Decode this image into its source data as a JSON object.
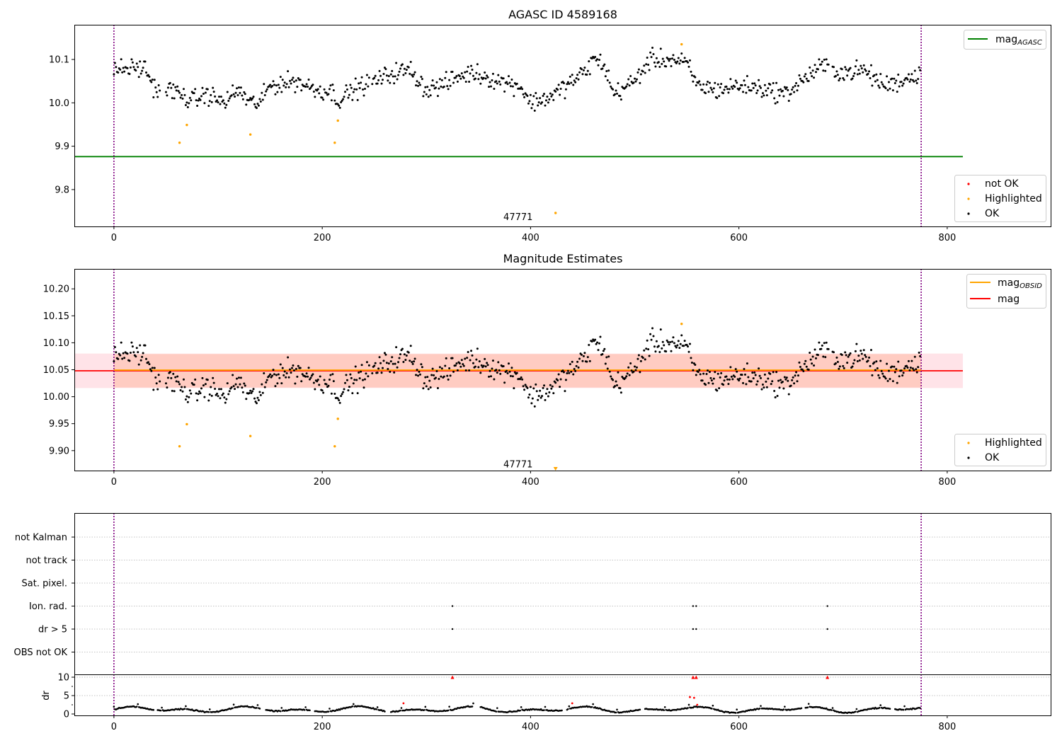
{
  "chart_data": [
    {
      "type": "scatter",
      "title": "AGASC ID 4589168",
      "xlabel": "",
      "ylabel": "",
      "xlim": [
        -38,
        900
      ],
      "ylim": [
        9.715,
        10.18
      ],
      "xticks": [
        0,
        200,
        400,
        600,
        800
      ],
      "yticks": [
        9.8,
        9.9,
        10.0,
        10.1
      ],
      "ytick_labels": [
        "9.8",
        "9.9",
        "10.0",
        "10.1"
      ],
      "vlines": [
        0,
        775
      ],
      "hline": {
        "name": "mag_AGASC",
        "y": 9.876,
        "x_range": [
          -38,
          815
        ],
        "color": "#008000"
      },
      "observation_label": {
        "text": "47771",
        "x": 388,
        "y": 9.73
      },
      "highlighted": [
        {
          "x": 63,
          "y": 9.908
        },
        {
          "x": 70,
          "y": 9.949
        },
        {
          "x": 131,
          "y": 9.927
        },
        {
          "x": 212,
          "y": 9.908
        },
        {
          "x": 215,
          "y": 9.959
        },
        {
          "x": 424,
          "y": 9.746
        },
        {
          "x": 545,
          "y": 10.135
        }
      ],
      "ok_series": {
        "name": "OK",
        "n_points": 775,
        "mean": 10.046
      },
      "legend": {
        "upper": [
          {
            "label": "mag",
            "subscript": "AGASC",
            "color": "#008000",
            "kind": "line"
          }
        ],
        "lower": [
          {
            "label": "not OK",
            "color": "#ff0000",
            "kind": "dot"
          },
          {
            "label": "Highlighted",
            "color": "#ffa500",
            "kind": "dot"
          },
          {
            "label": "OK",
            "color": "#000000",
            "kind": "dot"
          }
        ],
        "placement": [
          "top-right",
          "bottom-right"
        ]
      }
    },
    {
      "type": "scatter",
      "title": "Magnitude Estimates",
      "xlabel": "",
      "ylabel": "",
      "xlim": [
        -38,
        900
      ],
      "ylim": [
        9.863,
        10.237
      ],
      "xticks": [
        0,
        200,
        400,
        600,
        800
      ],
      "yticks": [
        9.9,
        9.95,
        10.0,
        10.05,
        10.1,
        10.15,
        10.2
      ],
      "ytick_labels": [
        "9.90",
        "9.95",
        "10.00",
        "10.05",
        "10.10",
        "10.15",
        "10.20"
      ],
      "vlines": [
        0,
        775
      ],
      "mag_line": {
        "name": "mag",
        "y": 10.048,
        "color": "#ff0000",
        "band": [
          10.016,
          10.08
        ]
      },
      "mag_obsid_line": {
        "name": "mag_OBSID",
        "y": 10.048,
        "x_range": [
          0,
          775
        ],
        "color": "#ffa500",
        "band": [
          10.017,
          10.079
        ]
      },
      "observation_label": {
        "text": "47771",
        "x": 388,
        "y": 9.874
      },
      "highlighted": [
        {
          "x": 63,
          "y": 9.908
        },
        {
          "x": 70,
          "y": 9.949
        },
        {
          "x": 131,
          "y": 9.927
        },
        {
          "x": 212,
          "y": 9.908
        },
        {
          "x": 215,
          "y": 9.959
        },
        {
          "x": 545,
          "y": 10.135
        }
      ],
      "highlighted_offscale": [
        {
          "x": 424,
          "marker": "triangle-down"
        }
      ],
      "ok_series": {
        "name": "OK",
        "n_points": 775,
        "mean": 10.046
      },
      "legend": {
        "upper": [
          {
            "label": "mag",
            "subscript": "OBSID",
            "color": "#ffa500",
            "kind": "line"
          },
          {
            "label": "mag",
            "subscript": "",
            "color": "#ff0000",
            "kind": "line"
          }
        ],
        "lower": [
          {
            "label": "Highlighted",
            "color": "#ffa500",
            "kind": "dot"
          },
          {
            "label": "OK",
            "color": "#000000",
            "kind": "dot"
          }
        ],
        "placement": [
          "top-right",
          "bottom-right"
        ]
      }
    },
    {
      "type": "scatter",
      "title": "",
      "xlabel": "",
      "ylabel": "",
      "xlim": [
        -38,
        900
      ],
      "xticks": [
        0,
        200,
        400,
        600,
        800
      ],
      "flag_categories": [
        "not Kalman",
        "not track",
        "Sat. pixel.",
        "Ion. rad.",
        "dr > 5",
        "OBS not OK"
      ],
      "vlines": [
        0,
        775
      ],
      "flag_points": [
        {
          "category": "Ion. rad.",
          "x": [
            325,
            556,
            559,
            685
          ]
        },
        {
          "category": "dr > 5",
          "x": [
            325,
            556,
            559,
            685
          ]
        }
      ],
      "grid": "horizontal dotted"
    },
    {
      "type": "scatter",
      "title": "",
      "xlabel": "",
      "ylabel": "dr",
      "xlim": [
        -38,
        900
      ],
      "ylim": [
        -0.5,
        10.5
      ],
      "yticks": [
        0,
        5,
        10
      ],
      "xticks": [
        0,
        200,
        400,
        600,
        800
      ],
      "red_points": [
        {
          "x": 278,
          "y": 2.9
        },
        {
          "x": 440,
          "y": 2.9
        },
        {
          "x": 553,
          "y": 4.6
        },
        {
          "x": 557,
          "y": 4.4
        },
        {
          "x": 560,
          "y": 2.5
        }
      ],
      "outlier_triangles": [
        325,
        556,
        559,
        685
      ],
      "ok_series": {
        "name": "OK",
        "n_points": 775,
        "range": [
          0.3,
          2.9
        ]
      }
    }
  ],
  "text": {
    "panel1_title": "AGASC ID 4589168",
    "panel2_title": "Magnitude Estimates",
    "dr_label": "dr",
    "obs_label": "47771",
    "legend_mag": "mag",
    "legend_sub_agasc": "AGASC",
    "legend_sub_obsid": "OBSID",
    "legend_not_ok": "not OK",
    "legend_highlighted": "Highlighted",
    "legend_ok": "OK",
    "flag_not_kalman": "not Kalman",
    "flag_not_track": "not track",
    "flag_sat_pixel": "Sat. pixel.",
    "flag_ion_rad": "Ion. rad.",
    "flag_dr5": "dr > 5",
    "flag_obs_not_ok": "OBS not OK"
  },
  "colors": {
    "ok": "#000000",
    "highlighted": "#ffa500",
    "not_ok": "#ff0000",
    "agasc_line": "#008000",
    "vline": "#800080",
    "band_red": "#ffc0cb",
    "band_orange": "#ffa07a"
  }
}
